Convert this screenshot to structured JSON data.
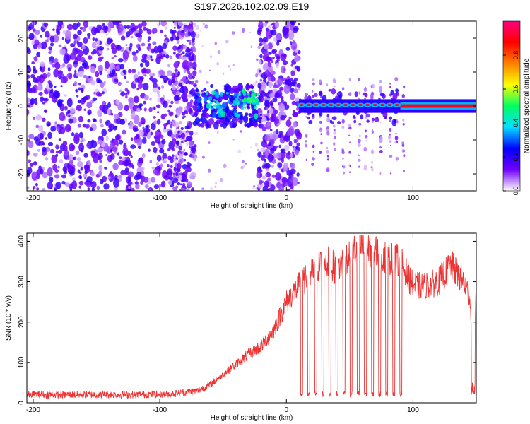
{
  "title": "S197.2026.102.02.09.E19",
  "chart_data": [
    {
      "type": "heatmap",
      "name": "spectrogram",
      "xlabel": "Height of straight line (km)",
      "ylabel": "Frequency (Hz)",
      "xlim": [
        -205,
        150
      ],
      "ylim": [
        -25,
        25
      ],
      "xticks": [
        -200,
        -100,
        0,
        100
      ],
      "yticks": [
        -20,
        -10,
        0,
        10,
        20
      ],
      "colorbar": {
        "label": "Normalized spectral amplitude",
        "range": [
          0,
          1
        ],
        "ticks": [
          0.0,
          0.2,
          0.4,
          0.6,
          0.8
        ],
        "colors": [
          "#ffffff",
          "#7000ff",
          "#0000ff",
          "#00e0ff",
          "#00ff60",
          "#ffff00",
          "#ff8000",
          "#ff0000",
          "#ff0080"
        ]
      },
      "regions": [
        {
          "x": [
            -205,
            -72
          ],
          "kind": "broadband noise",
          "amplitude": 0.12
        },
        {
          "x": [
            -72,
            -20
          ],
          "kind": "weak signal near 0 Hz",
          "amplitude": 0.35
        },
        {
          "x": [
            -20,
            10
          ],
          "kind": "broadband noise",
          "amplitude": 0.12
        },
        {
          "x": [
            10,
            90
          ],
          "kind": "intermittent line at 0 Hz",
          "amplitude": 0.9
        },
        {
          "x": [
            90,
            150
          ],
          "kind": "continuous line at 0 Hz",
          "amplitude": 0.95
        }
      ]
    },
    {
      "type": "line",
      "name": "snr",
      "xlabel": "Height of straight line (km)",
      "ylabel": "SNR (10 * v/v)",
      "xlim": [
        -205,
        150
      ],
      "ylim": [
        0,
        420
      ],
      "xticks": [
        -200,
        -100,
        0,
        100
      ],
      "yticks": [
        0,
        100,
        200,
        300,
        400
      ],
      "color": "#ee3333",
      "series": [
        {
          "name": "SNR",
          "x": [
            -205,
            -180,
            -150,
            -120,
            -90,
            -70,
            -60,
            -50,
            -40,
            -30,
            -20,
            -10,
            0,
            10,
            20,
            30,
            40,
            50,
            60,
            70,
            80,
            90,
            100,
            110,
            120,
            130,
            140,
            145,
            148,
            150
          ],
          "y": [
            20,
            20,
            20,
            20,
            22,
            30,
            45,
            70,
            95,
            120,
            140,
            180,
            250,
            290,
            320,
            355,
            330,
            370,
            390,
            375,
            360,
            350,
            290,
            290,
            300,
            340,
            300,
            260,
            40,
            300
          ]
        }
      ]
    }
  ]
}
